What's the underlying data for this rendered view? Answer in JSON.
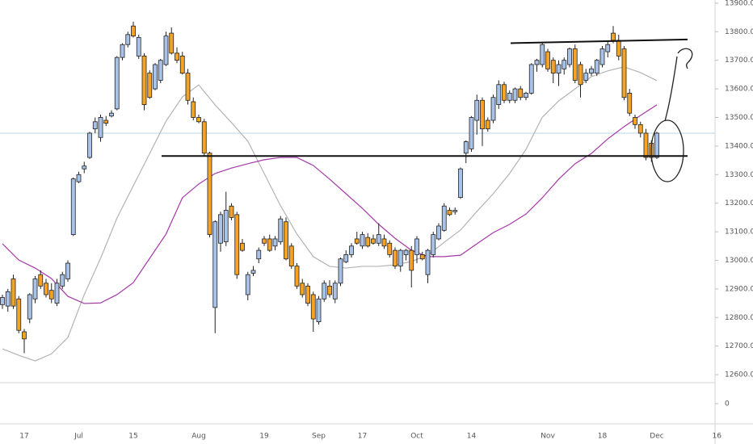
{
  "chart_data": {
    "type": "candlestick",
    "categories": [
      null,
      null,
      null,
      null,
      "17",
      null,
      null,
      null,
      null,
      null,
      null,
      null,
      null,
      null,
      "Jul",
      null,
      null,
      null,
      null,
      null,
      null,
      null,
      null,
      null,
      "15",
      null,
      null,
      null,
      null,
      null,
      null,
      null,
      null,
      null,
      null,
      null,
      "Aug",
      null,
      null,
      null,
      null,
      null,
      null,
      null,
      null,
      null,
      null,
      null,
      "19",
      null,
      null,
      null,
      null,
      null,
      null,
      null,
      null,
      null,
      "Sep",
      null,
      null,
      null,
      null,
      null,
      null,
      null,
      "17",
      null,
      null,
      null,
      null,
      null,
      null,
      null,
      null,
      null,
      "Oct",
      null,
      null,
      null,
      null,
      null,
      null,
      null,
      null,
      null,
      "14",
      null,
      null,
      null,
      null,
      null,
      null,
      null,
      null,
      null,
      null,
      null,
      null,
      null,
      "Nov",
      null,
      null,
      null,
      null,
      null,
      null,
      null,
      null,
      null,
      "18",
      null,
      null,
      null,
      null,
      null,
      null,
      null,
      null,
      null,
      "Dec",
      null,
      null,
      null,
      null,
      null,
      null,
      null,
      null,
      null,
      null,
      "16"
    ],
    "open": [
      12845,
      12840,
      12935,
      12865,
      12750,
      12795,
      12865,
      12950,
      12920,
      12895,
      12850,
      12910,
      12935,
      13090,
      13275,
      13320,
      13360,
      13460,
      13430,
      13490,
      13505,
      13530,
      13710,
      13755,
      13820,
      13715,
      13715,
      13655,
      13600,
      13630,
      13685,
      13795,
      13725,
      13715,
      13655,
      13555,
      13500,
      13485,
      13375,
      12835,
      13060,
      13065,
      13190,
      13160,
      13060,
      12880,
      12955,
      13005,
      13075,
      13075,
      13050,
      13065,
      13135,
      13050,
      12980,
      12920,
      12910,
      12880,
      12785,
      12865,
      12910,
      12865,
      12920,
      12995,
      13020,
      13075,
      13050,
      13080,
      13075,
      13060,
      13075,
      13060,
      13035,
      12980,
      13020,
      13035,
      13020,
      13020,
      12950,
      13020,
      13075,
      13105,
      13175,
      13170,
      13220,
      13375,
      13390,
      13490,
      13560,
      13490,
      13490,
      13545,
      13615,
      13560,
      13560,
      13600,
      13570,
      13585,
      13685,
      13685,
      13730,
      13700,
      13655,
      13670,
      13685,
      13740,
      13685,
      13630,
      13655,
      13655,
      13685,
      13730,
      13795,
      13770,
      13740,
      13585,
      13500,
      13475,
      13445,
      13410,
      13360,
      null,
      null,
      null,
      null,
      null,
      null,
      null,
      null,
      null,
      null,
      null
    ],
    "high": [
      12880,
      12900,
      12950,
      12875,
      12760,
      12885,
      12945,
      12965,
      12935,
      12920,
      12935,
      12960,
      13000,
      13290,
      13310,
      13345,
      13450,
      13500,
      13510,
      13505,
      13525,
      13715,
      13760,
      13800,
      13835,
      13790,
      13725,
      13665,
      13690,
      13705,
      13800,
      13815,
      13745,
      13730,
      13670,
      13570,
      13510,
      13495,
      13380,
      13140,
      13170,
      13240,
      13200,
      13170,
      13075,
      12960,
      12980,
      13045,
      13085,
      13090,
      13085,
      13155,
      13150,
      13060,
      12990,
      12935,
      12920,
      12890,
      12875,
      12930,
      12930,
      12930,
      13010,
      13035,
      13060,
      13100,
      13100,
      13095,
      13090,
      13130,
      13090,
      13070,
      13045,
      13040,
      13040,
      13050,
      13085,
      13030,
      13040,
      13100,
      13130,
      13200,
      13185,
      13185,
      13325,
      13420,
      13505,
      13580,
      13570,
      13500,
      13580,
      13630,
      13625,
      13595,
      13605,
      13610,
      13590,
      13690,
      13705,
      13760,
      13740,
      13710,
      13700,
      13710,
      13745,
      13755,
      13695,
      13670,
      13680,
      13705,
      13750,
      13765,
      13820,
      13790,
      13750,
      13600,
      13510,
      13485,
      13460,
      13420,
      13450,
      null,
      null,
      null,
      null,
      null,
      null,
      null,
      null,
      null,
      null,
      null
    ],
    "low": [
      12830,
      12820,
      12830,
      12745,
      12675,
      12780,
      12850,
      12900,
      12870,
      12850,
      12840,
      12900,
      12925,
      13085,
      13270,
      13305,
      13355,
      13445,
      13415,
      13470,
      13500,
      13525,
      13700,
      13745,
      13780,
      13705,
      13525,
      13565,
      13595,
      13620,
      13680,
      13720,
      13690,
      13650,
      13545,
      13490,
      13480,
      13365,
      13080,
      12745,
      13030,
      13050,
      13140,
      12935,
      13030,
      12860,
      12945,
      12990,
      13050,
      13030,
      13035,
      13055,
      13000,
      12970,
      12900,
      12870,
      12840,
      12750,
      12775,
      12855,
      12870,
      12850,
      12910,
      12990,
      13010,
      13055,
      13040,
      13045,
      13055,
      13050,
      13040,
      13010,
      12970,
      12960,
      13000,
      12905,
      12990,
      13000,
      12920,
      13010,
      13070,
      13100,
      13155,
      13160,
      13215,
      13340,
      13380,
      13440,
      13400,
      13450,
      13480,
      13530,
      13550,
      13550,
      13550,
      13560,
      13560,
      13580,
      13660,
      13675,
      13660,
      13620,
      13610,
      13650,
      13675,
      13620,
      13570,
      13620,
      13645,
      13645,
      13675,
      13710,
      13760,
      13700,
      13560,
      13505,
      13460,
      13430,
      13350,
      13345,
      13355,
      null,
      null,
      null,
      null,
      null,
      null,
      null,
      null,
      null,
      null,
      null
    ],
    "close": [
      12870,
      12890,
      12840,
      12755,
      12725,
      12880,
      12935,
      12910,
      12880,
      12865,
      12920,
      12950,
      12990,
      13285,
      13300,
      13330,
      13445,
      13485,
      13500,
      13480,
      13515,
      13710,
      13755,
      13790,
      13785,
      13780,
      13545,
      13570,
      13685,
      13700,
      13785,
      13725,
      13700,
      13655,
      13560,
      13500,
      13485,
      13375,
      13090,
      13135,
      13160,
      13175,
      13150,
      12950,
      13035,
      12950,
      12965,
      13035,
      13060,
      13035,
      13075,
      13145,
      13005,
      12980,
      12910,
      12880,
      12850,
      12795,
      12865,
      12920,
      12880,
      12920,
      13005,
      13020,
      13050,
      13060,
      13090,
      13050,
      13060,
      13090,
      13050,
      13020,
      12980,
      13035,
      13035,
      12965,
      13075,
      13005,
      13035,
      13090,
      13120,
      13190,
      13160,
      13175,
      13320,
      13415,
      13500,
      13560,
      13460,
      13460,
      13570,
      13615,
      13560,
      13585,
      13600,
      13570,
      13585,
      13685,
      13700,
      13755,
      13670,
      13655,
      13685,
      13700,
      13740,
      13630,
      13615,
      13655,
      13670,
      13700,
      13740,
      13755,
      13770,
      13715,
      13570,
      13515,
      13475,
      13445,
      13360,
      13360,
      13445,
      null,
      null,
      null,
      null,
      null,
      null,
      null,
      null,
      null,
      null,
      null
    ],
    "up_color": "#a9c3e8",
    "down_color": "#f5a324",
    "moving_averages": [
      {
        "color": "#b3b3b3",
        "x": [
          0,
          3,
          6,
          9,
          12,
          15,
          18,
          21,
          24,
          27,
          30,
          33,
          36,
          39,
          42,
          45,
          48,
          51,
          54,
          57,
          60,
          63,
          66,
          69,
          72,
          75,
          78,
          81,
          84,
          87,
          90,
          93,
          96,
          99,
          102,
          105,
          108,
          111,
          114,
          117,
          120
        ],
        "values": [
          12690,
          12668,
          12648,
          12673,
          12730,
          12880,
          13007,
          13148,
          13261,
          13374,
          13487,
          13572,
          13614,
          13544,
          13482,
          13417,
          13304,
          13191,
          13092,
          13013,
          12979,
          12973,
          12979,
          12979,
          12984,
          12996,
          13018,
          13063,
          13106,
          13171,
          13233,
          13304,
          13388,
          13501,
          13558,
          13600,
          13643,
          13663,
          13677,
          13657,
          13629
        ]
      },
      {
        "color": "#a43aa8",
        "x": [
          0,
          3,
          6,
          9,
          12,
          15,
          18,
          21,
          24,
          27,
          30,
          33,
          36,
          39,
          42,
          45,
          48,
          51,
          54,
          57,
          60,
          63,
          66,
          69,
          72,
          75,
          78,
          81,
          84,
          87,
          90,
          93,
          96,
          99,
          102,
          105,
          108,
          111,
          114,
          117,
          120
        ],
        "values": [
          13058,
          13001,
          12973,
          12936,
          12874,
          12849,
          12851,
          12880,
          12922,
          13007,
          13092,
          13219,
          13267,
          13304,
          13323,
          13338,
          13352,
          13360,
          13360,
          13332,
          13284,
          13233,
          13182,
          13126,
          13077,
          13035,
          13013,
          13013,
          13018,
          13058,
          13097,
          13126,
          13162,
          13219,
          13284,
          13338,
          13374,
          13425,
          13468,
          13507,
          13544
        ]
      }
    ],
    "support_level": 13365,
    "resistance_line": [
      13760,
      13773
    ],
    "ylim": [
      12572,
      13911
    ],
    "yticks": [
      {
        "value": 12600,
        "label": "12600.00"
      },
      {
        "value": 12700,
        "label": "12700.00"
      },
      {
        "value": 12800,
        "label": "12800.00"
      },
      {
        "value": 12900,
        "label": "12900.00"
      },
      {
        "value": 13000,
        "label": "13000.00"
      },
      {
        "value": 13100,
        "label": "13100.00"
      },
      {
        "value": 13200,
        "label": "13200.00"
      },
      {
        "value": 13300,
        "label": "13300.00"
      },
      {
        "value": 13400,
        "label": "13400.00"
      },
      {
        "value": 13500,
        "label": "13500.00"
      },
      {
        "value": 13600,
        "label": "13600.00"
      },
      {
        "value": 13700,
        "label": "13700.00"
      },
      {
        "value": 13800,
        "label": "13800.00"
      },
      {
        "value": 13900,
        "label": "13900.00"
      }
    ],
    "volume_yticks": [
      0
    ]
  }
}
